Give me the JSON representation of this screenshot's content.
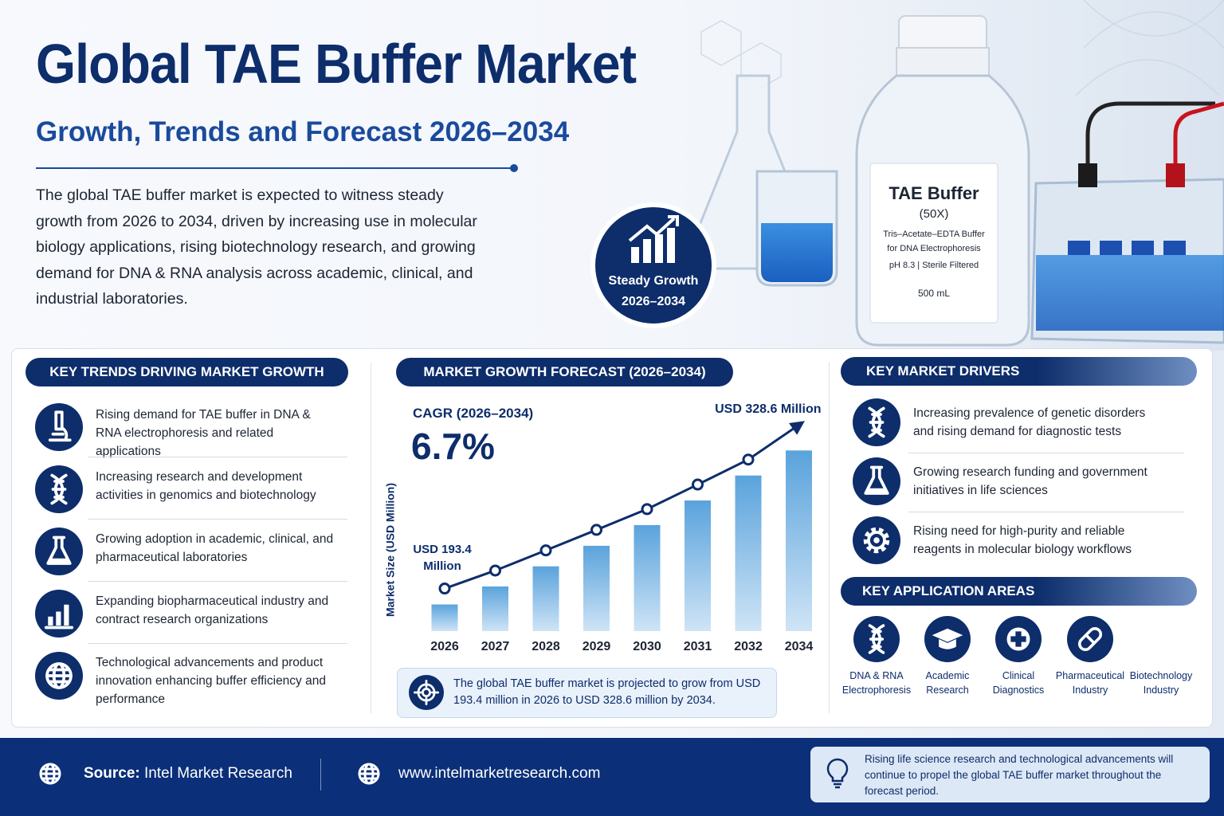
{
  "header": {
    "title": "Global TAE Buffer Market",
    "subtitle": "Growth, Trends and Forecast 2026–2034",
    "description": "The global TAE buffer market is expected to witness steady growth from 2026 to 2034, driven by increasing use in molecular biology applications, rising biotechnology research, and growing demand for DNA & RNA analysis across academic, clinical, and industrial laboratories.",
    "badge": [
      "Steady Growth",
      "2026–2034"
    ],
    "bottle_label": [
      "TAE Buffer",
      "(50X)",
      "Tris–Acetate–EDTA Buffer for DNA Electrophoresis",
      "pH 8.3 | Sterile Filtered",
      "500 mL"
    ]
  },
  "trends": {
    "heading": "KEY TRENDS DRIVING MARKET GROWTH",
    "items": [
      "Rising demand for TAE buffer in DNA & RNA electrophoresis and related applications",
      "Increasing research and development activities in genomics and biotechnology",
      "Growing adoption in academic, clinical, and pharmaceutical laboratories",
      "Expanding biopharmaceutical industry and contract research organizations",
      "Technological advancements and product innovation enhancing buffer efficiency and performance"
    ]
  },
  "chart_data": {
    "type": "bar",
    "title": "MARKET GROWTH FORECAST (2026–2034)",
    "y_label": "Market Size (USD Million)",
    "cagr_label": "CAGR (2026–2034)",
    "cagr": "6.7%",
    "categories": [
      "2026",
      "2027",
      "2028",
      "2029",
      "2030",
      "2031",
      "2032",
      "2034"
    ],
    "values": [
      193.4,
      209.2,
      226.9,
      244.9,
      263.1,
      284.7,
      306.6,
      328.6
    ],
    "value_labels": [
      "USD 193.4 Million",
      null,
      null,
      null,
      null,
      null,
      null,
      "USD 328.6 Million"
    ],
    "color": "#5aa3dc",
    "line_color": "#0d2d6b",
    "ylim": [
      170,
      340
    ],
    "note": "The global TAE buffer market is projected to grow from USD 193.4 million in 2026 to USD 328.6 million by 2034."
  },
  "drivers": {
    "heading": "KEY MARKET DRIVERS",
    "items": [
      "Increasing prevalence of genetic disorders and rising demand for diagnostic tests",
      "Growing research funding and government initiatives in life sciences",
      "Rising need for high-purity and reliable reagents in molecular biology workflows"
    ]
  },
  "applications": {
    "heading": "KEY APPLICATION AREAS",
    "items": [
      "DNA & RNA Electrophoresis",
      "Academic Research",
      "Clinical Diagnostics",
      "Pharmaceutical Industry",
      "Biotechnology Industry"
    ]
  },
  "footer": {
    "source_label": "Source:",
    "source": "Intel Market Research",
    "website": "www.intelmarketresearch.com",
    "note": "Rising life science research and technological advancements will continue to propel the global TAE buffer market throughout the forecast period."
  }
}
